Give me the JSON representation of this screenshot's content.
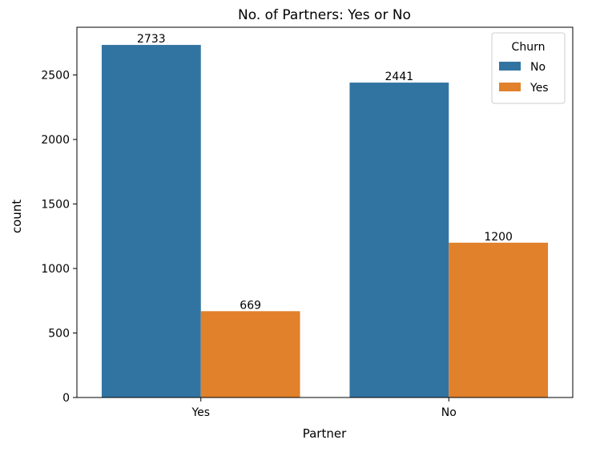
{
  "chart_data": {
    "type": "bar",
    "title": "No. of Partners: Yes or No",
    "xlabel": "Partner",
    "ylabel": "count",
    "categories": [
      "Yes",
      "No"
    ],
    "series": [
      {
        "name": "No",
        "values": [
          2733,
          2441
        ],
        "color": "#3274a1"
      },
      {
        "name": "Yes",
        "values": [
          669,
          1200
        ],
        "color": "#e1812c"
      }
    ],
    "ylim": [
      0,
      2870
    ],
    "yticks": [
      0,
      500,
      1000,
      1500,
      2000,
      2500
    ],
    "data_labels": true,
    "legend": {
      "title": "Churn",
      "placement": "top-right"
    },
    "grid": false
  }
}
